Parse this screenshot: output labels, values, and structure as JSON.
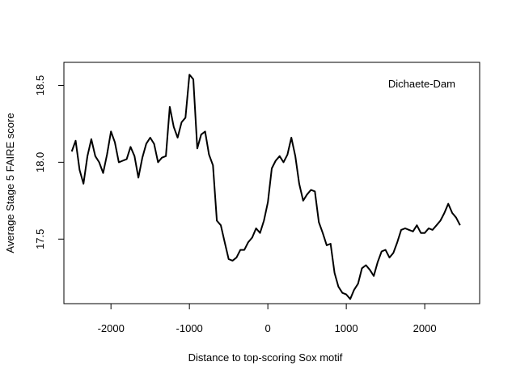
{
  "chart_data": {
    "type": "line",
    "title": "",
    "xlabel": "Distance to top-scoring Sox motif",
    "ylabel": "Average Stage 5 FAIRE score",
    "annotation": "Dichaete-Dam",
    "xlim": [
      -2600,
      2700
    ],
    "ylim": [
      17.08,
      18.65
    ],
    "x_ticks": [
      -2000,
      -1000,
      0,
      1000,
      2000
    ],
    "y_ticks": [
      17.5,
      18.0,
      18.5
    ],
    "x_tick_labels": [
      "-2000",
      "-1000",
      "0",
      "1000",
      "2000"
    ],
    "y_tick_labels": [
      "17.5",
      "18.0",
      "18.5"
    ],
    "grid": false,
    "line_color": "#000000",
    "series": [
      {
        "x": [
          -2500,
          -2450,
          -2400,
          -2350,
          -2300,
          -2250,
          -2200,
          -2150,
          -2100,
          -2050,
          -2000,
          -1950,
          -1900,
          -1850,
          -1800,
          -1750,
          -1700,
          -1650,
          -1600,
          -1550,
          -1500,
          -1450,
          -1400,
          -1350,
          -1300,
          -1250,
          -1200,
          -1150,
          -1100,
          -1050,
          -1000,
          -950,
          -900,
          -850,
          -800,
          -750,
          -700,
          -650,
          -600,
          -550,
          -500,
          -450,
          -400,
          -350,
          -300,
          -250,
          -200,
          -150,
          -100,
          -50,
          0,
          50,
          100,
          150,
          200,
          250,
          300,
          350,
          400,
          450,
          500,
          550,
          600,
          650,
          700,
          750,
          800,
          850,
          900,
          950,
          1000,
          1050,
          1100,
          1150,
          1200,
          1250,
          1300,
          1350,
          1400,
          1450,
          1500,
          1550,
          1600,
          1650,
          1700,
          1750,
          1800,
          1850,
          1900,
          1950,
          2000,
          2050,
          2100,
          2150,
          2200,
          2250,
          2300,
          2350,
          2400,
          2450
        ],
        "values": [
          18.07,
          18.14,
          17.95,
          17.86,
          18.04,
          18.15,
          18.04,
          18.0,
          17.93,
          18.05,
          18.2,
          18.13,
          18.0,
          18.01,
          18.02,
          18.1,
          18.04,
          17.9,
          18.03,
          18.12,
          18.16,
          18.12,
          18.0,
          18.03,
          18.04,
          18.36,
          18.23,
          18.16,
          18.26,
          18.29,
          18.57,
          18.54,
          18.09,
          18.18,
          18.2,
          18.05,
          17.98,
          17.62,
          17.59,
          17.48,
          17.37,
          17.36,
          17.38,
          17.43,
          17.43,
          17.48,
          17.51,
          17.57,
          17.54,
          17.62,
          17.74,
          17.96,
          18.01,
          18.04,
          18.0,
          18.05,
          18.16,
          18.04,
          17.86,
          17.75,
          17.79,
          17.82,
          17.81,
          17.61,
          17.54,
          17.46,
          17.47,
          17.28,
          17.19,
          17.15,
          17.14,
          17.11,
          17.17,
          17.21,
          17.31,
          17.33,
          17.3,
          17.26,
          17.35,
          17.42,
          17.43,
          17.38,
          17.41,
          17.48,
          17.56,
          17.57,
          17.56,
          17.55,
          17.59,
          17.54,
          17.54,
          17.57,
          17.56,
          17.59,
          17.62,
          17.67,
          17.73,
          17.67,
          17.64,
          17.59
        ]
      }
    ]
  }
}
